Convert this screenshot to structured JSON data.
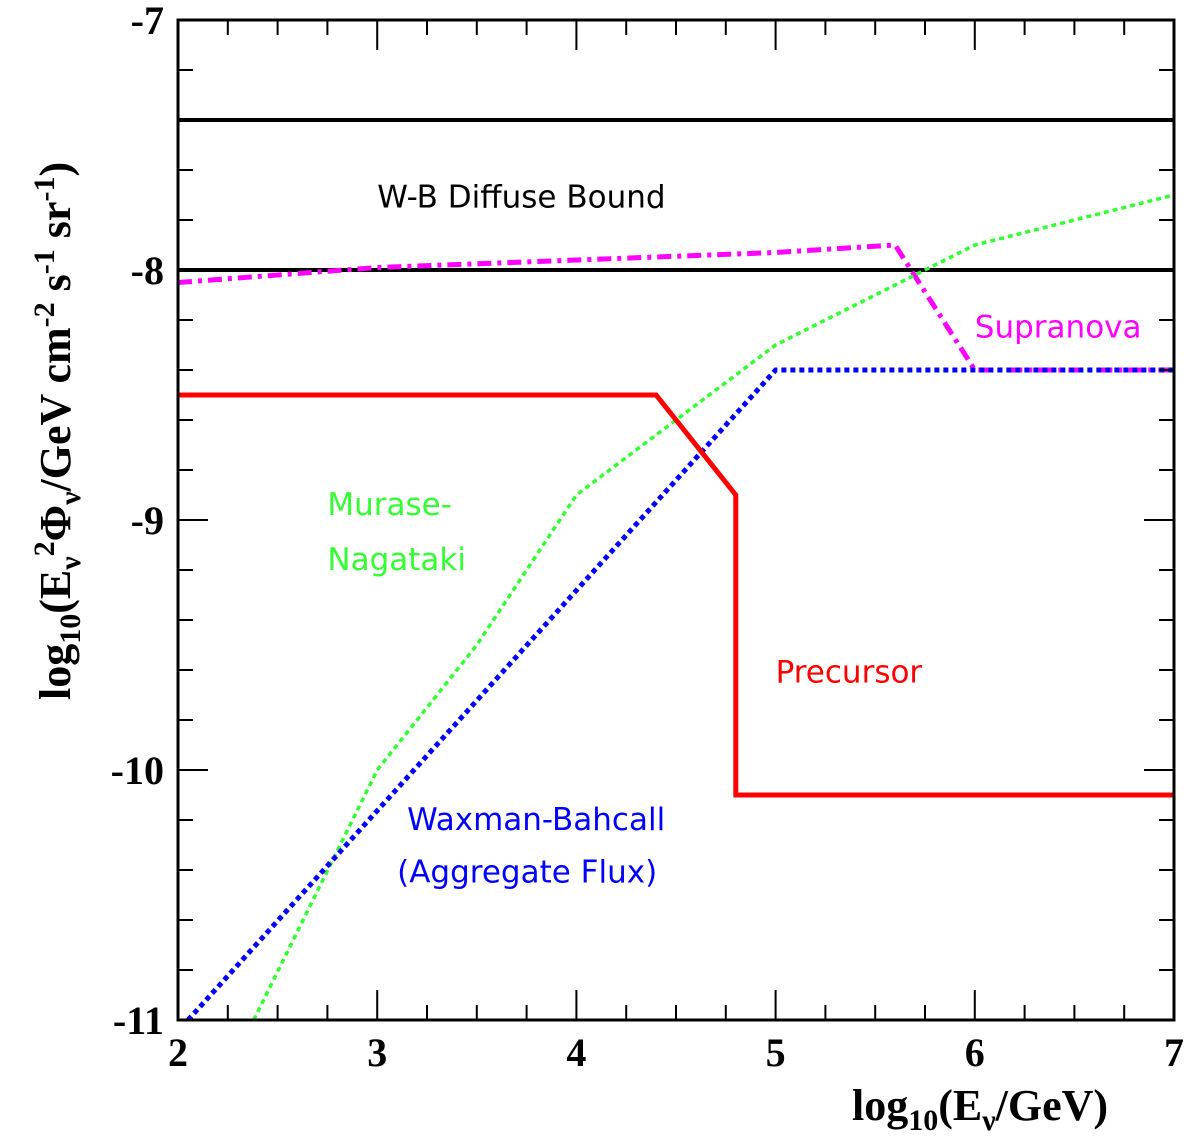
{
  "chart_data": {
    "type": "line",
    "xlabel": {
      "base": "log",
      "sub": "10",
      "rest": "(E",
      "nu": "ν",
      "tail": "/GeV)"
    },
    "ylabel": "log10(Eν 2Φν/GeV cm-2 s-1 sr-1)",
    "xlim": [
      2,
      7
    ],
    "ylim": [
      -11,
      -7
    ],
    "x_ticks": [
      2,
      3,
      4,
      5,
      6,
      7
    ],
    "y_ticks": [
      -11,
      -10,
      -9,
      -8,
      -7
    ],
    "x_tick_labels": [
      "2",
      "3",
      "4",
      "5",
      "6",
      "7"
    ],
    "y_tick_labels": [
      "-11",
      "-10",
      "-9",
      "-8",
      "-7"
    ],
    "grid": false,
    "series": [
      {
        "key": "wb_upper",
        "color": "#000000",
        "style": "solid",
        "x": [
          2,
          7
        ],
        "y": [
          -7.4,
          -7.4
        ]
      },
      {
        "key": "wb_lower",
        "color": "#000000",
        "style": "solid",
        "x": [
          2,
          7
        ],
        "y": [
          -8.0,
          -8.0
        ]
      },
      {
        "key": "supranova",
        "color": "#ff00ff",
        "style": "dashdot",
        "x": [
          2,
          3,
          4,
          5,
          5.6,
          6,
          7
        ],
        "y": [
          -8.05,
          -7.99,
          -7.96,
          -7.93,
          -7.9,
          -8.4,
          -8.4
        ]
      },
      {
        "key": "murase_nagataki",
        "color": "#33ff33",
        "style": "dotted",
        "x": [
          2.38,
          3,
          3.5,
          4,
          4.5,
          5,
          5.5,
          6,
          6.5,
          7
        ],
        "y": [
          -11.0,
          -10.0,
          -9.5,
          -8.9,
          -8.6,
          -8.3,
          -8.1,
          -7.9,
          -7.8,
          -7.7
        ]
      },
      {
        "key": "waxman_bahcall",
        "color": "#0000ff",
        "style": "dotted",
        "x": [
          2.05,
          5,
          7
        ],
        "y": [
          -11.0,
          -8.4,
          -8.4
        ]
      },
      {
        "key": "precursor",
        "color": "#ff0000",
        "style": "solid",
        "x": [
          2,
          4.4,
          4.8,
          4.8,
          7
        ],
        "y": [
          -8.5,
          -8.5,
          -8.9,
          -10.1,
          -10.1
        ]
      }
    ],
    "annotations": [
      {
        "key": "wb_bound",
        "text": "W-B Diffuse Bound",
        "color": "#000000"
      },
      {
        "key": "supranova",
        "text": "Supranova",
        "color": "#ff00ff"
      },
      {
        "key": "murase1",
        "text": "Murase-",
        "color": "#33ff33"
      },
      {
        "key": "murase2",
        "text": "Nagataki",
        "color": "#33ff33"
      },
      {
        "key": "precursor",
        "text": "Precursor",
        "color": "#ff0000"
      },
      {
        "key": "wb1",
        "text": "Waxman-Bahcall",
        "color": "#0000ff"
      },
      {
        "key": "wb2",
        "text": "(Aggregate Flux)",
        "color": "#0000ff"
      }
    ]
  }
}
